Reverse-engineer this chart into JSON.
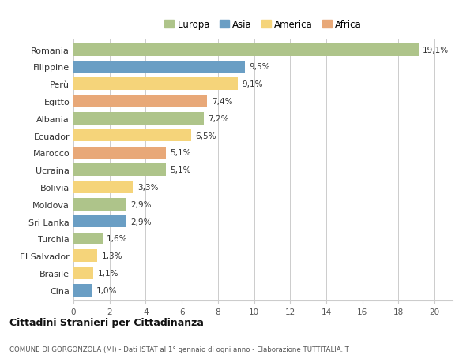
{
  "categories": [
    "Romania",
    "Filippine",
    "Perù",
    "Egitto",
    "Albania",
    "Ecuador",
    "Marocco",
    "Ucraina",
    "Bolivia",
    "Moldova",
    "Sri Lanka",
    "Turchia",
    "El Salvador",
    "Brasile",
    "Cina"
  ],
  "values": [
    19.1,
    9.5,
    9.1,
    7.4,
    7.2,
    6.5,
    5.1,
    5.1,
    3.3,
    2.9,
    2.9,
    1.6,
    1.3,
    1.1,
    1.0
  ],
  "labels": [
    "19,1%",
    "9,5%",
    "9,1%",
    "7,4%",
    "7,2%",
    "6,5%",
    "5,1%",
    "5,1%",
    "3,3%",
    "2,9%",
    "2,9%",
    "1,6%",
    "1,3%",
    "1,1%",
    "1,0%"
  ],
  "colors": [
    "#aec48a",
    "#6a9ec4",
    "#f5d47a",
    "#e8a878",
    "#aec48a",
    "#f5d47a",
    "#e8a878",
    "#aec48a",
    "#f5d47a",
    "#aec48a",
    "#6a9ec4",
    "#aec48a",
    "#f5d47a",
    "#f5d47a",
    "#6a9ec4"
  ],
  "legend_labels": [
    "Europa",
    "Asia",
    "America",
    "Africa"
  ],
  "legend_colors": [
    "#aec48a",
    "#6a9ec4",
    "#f5d47a",
    "#e8a878"
  ],
  "title": "Cittadini Stranieri per Cittadinanza",
  "subtitle": "COMUNE DI GORGONZOLA (MI) - Dati ISTAT al 1° gennaio di ogni anno - Elaborazione TUTTITALIA.IT",
  "xlim": [
    0,
    21
  ],
  "xticks": [
    0,
    2,
    4,
    6,
    8,
    10,
    12,
    14,
    16,
    18,
    20
  ],
  "background_color": "#ffffff",
  "grid_color": "#cccccc",
  "bar_height": 0.72
}
